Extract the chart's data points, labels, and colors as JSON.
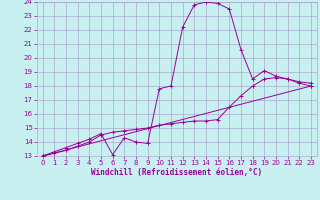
{
  "xlabel": "Windchill (Refroidissement éolien,°C)",
  "xlim": [
    -0.5,
    23.5
  ],
  "ylim": [
    13,
    24
  ],
  "yticks": [
    13,
    14,
    15,
    16,
    17,
    18,
    19,
    20,
    21,
    22,
    23,
    24
  ],
  "xticks": [
    0,
    1,
    2,
    3,
    4,
    5,
    6,
    7,
    8,
    9,
    10,
    11,
    12,
    13,
    14,
    15,
    16,
    17,
    18,
    19,
    20,
    21,
    22,
    23
  ],
  "bg_color": "#c8f0f0",
  "grid_color": "#aaaacc",
  "line_color": "#990099",
  "lines": [
    {
      "x": [
        0,
        1,
        2,
        3,
        4,
        5,
        6,
        7,
        8,
        9,
        10,
        11,
        12,
        13,
        14,
        15,
        16,
        17,
        18,
        19,
        20,
        21,
        22,
        23
      ],
      "y": [
        13,
        13.3,
        13.6,
        13.9,
        14.2,
        14.6,
        13.1,
        14.3,
        14.0,
        13.9,
        17.8,
        18.0,
        22.2,
        23.8,
        24.0,
        23.9,
        23.5,
        20.6,
        18.5,
        19.1,
        18.7,
        18.5,
        18.2,
        18.0
      ]
    },
    {
      "x": [
        0,
        1,
        2,
        3,
        4,
        5,
        6,
        7,
        8,
        9,
        10,
        11,
        12,
        13,
        14,
        15,
        16,
        17,
        18,
        19,
        20,
        21,
        22,
        23
      ],
      "y": [
        13,
        13.2,
        13.4,
        13.7,
        14.0,
        14.5,
        14.7,
        14.8,
        14.9,
        15.0,
        15.2,
        15.3,
        15.4,
        15.5,
        15.5,
        15.6,
        16.5,
        17.3,
        18.0,
        18.5,
        18.6,
        18.5,
        18.3,
        18.2
      ]
    },
    {
      "x": [
        0,
        23
      ],
      "y": [
        13,
        18.0
      ]
    }
  ]
}
